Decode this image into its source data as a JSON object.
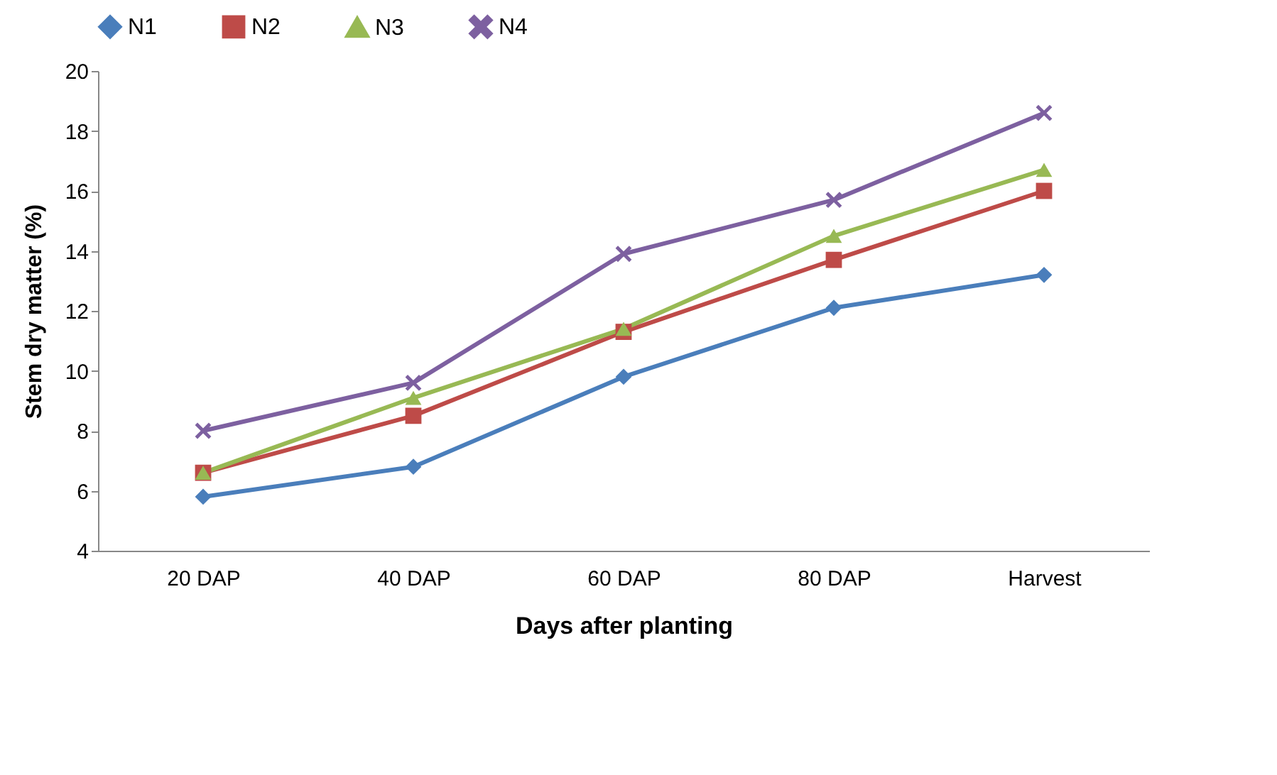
{
  "chart_data": {
    "type": "line",
    "xlabel": "Days after planting",
    "ylabel": "Stem dry matter (%)",
    "categories": [
      "20 DAP",
      "40 DAP",
      "60 DAP",
      "80 DAP",
      "Harvest"
    ],
    "series": [
      {
        "name": "N1",
        "color": "#4a7ebb",
        "marker": "diamond",
        "values": [
          5.8,
          6.8,
          9.8,
          12.1,
          13.2
        ]
      },
      {
        "name": "N2",
        "color": "#be4b48",
        "marker": "square",
        "values": [
          6.6,
          8.5,
          11.3,
          13.7,
          16.0
        ]
      },
      {
        "name": "N3",
        "color": "#98b954",
        "marker": "triangle",
        "values": [
          6.6,
          9.1,
          11.4,
          14.5,
          16.7
        ]
      },
      {
        "name": "N4",
        "color": "#7d60a0",
        "marker": "cross",
        "values": [
          8.0,
          9.6,
          13.9,
          15.7,
          18.6
        ]
      }
    ],
    "ylim": [
      4,
      20
    ],
    "yticks": [
      4,
      6,
      8,
      10,
      12,
      14,
      16,
      18,
      20
    ],
    "grid": false,
    "legend": "top",
    "line_style": "solid"
  }
}
